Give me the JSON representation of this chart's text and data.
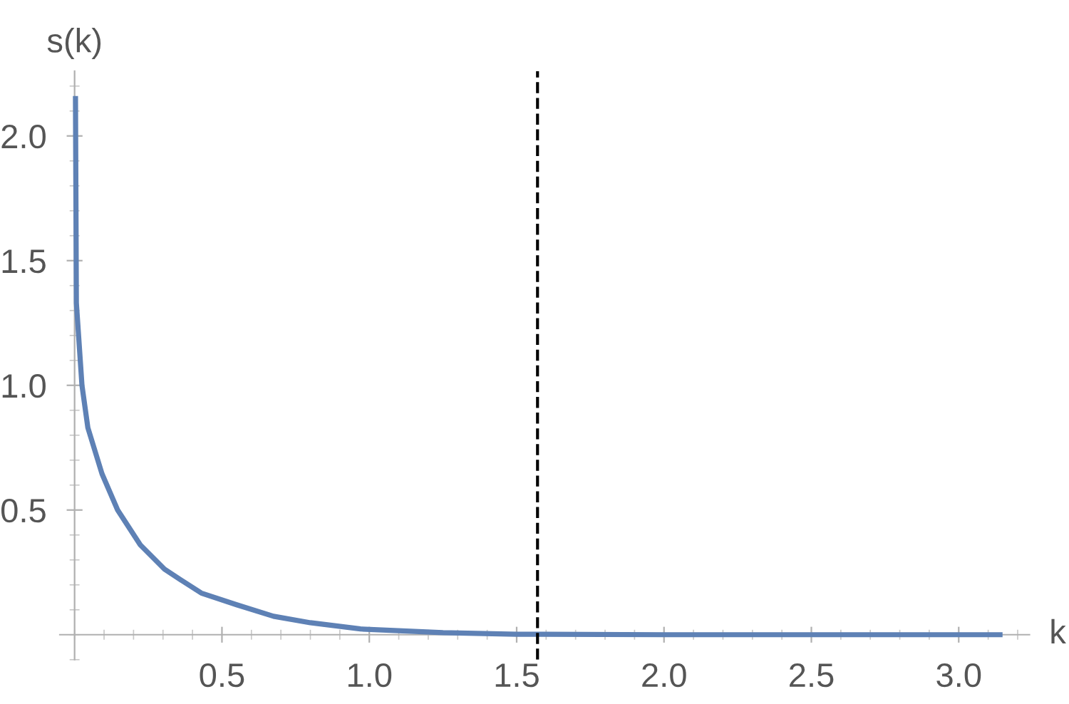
{
  "chart_data": {
    "type": "line",
    "xlabel": "k",
    "ylabel": "s(k)",
    "series": [
      {
        "color": "#5e81b5",
        "x": [
          0.003,
          0.006,
          0.025,
          0.045,
          0.093,
          0.146,
          0.223,
          0.305,
          0.36,
          0.43,
          0.55,
          0.675,
          0.8,
          0.97,
          1.25,
          1.5,
          2.0,
          2.5,
          3.14
        ],
        "values": [
          2.15,
          1.33,
          1.0,
          0.83,
          0.645,
          0.5,
          0.36,
          0.263,
          0.22,
          0.167,
          0.12,
          0.074,
          0.048,
          0.023,
          0.008,
          0.002,
          0.0,
          0.0,
          0.0
        ]
      }
    ],
    "xlim": [
      -0.05,
      3.24
    ],
    "ylim": [
      -0.1,
      2.26
    ],
    "xticks": [
      0.5,
      {
        "value": 1,
        "label": "1.0"
      },
      1.5,
      {
        "value": 2,
        "label": "2.0"
      },
      2.5,
      {
        "value": 3,
        "label": "3.0"
      }
    ],
    "yticks": [
      0.5,
      {
        "value": 1,
        "label": "1.0"
      },
      1.5,
      {
        "value": 2,
        "label": "2.0"
      }
    ],
    "ref_lines": [
      {
        "axis": "x",
        "value": 1.5708,
        "color": "#000000",
        "line_style": "dashed"
      }
    ],
    "grid": false,
    "legend": false,
    "marker": "none",
    "line_style": "solid"
  }
}
